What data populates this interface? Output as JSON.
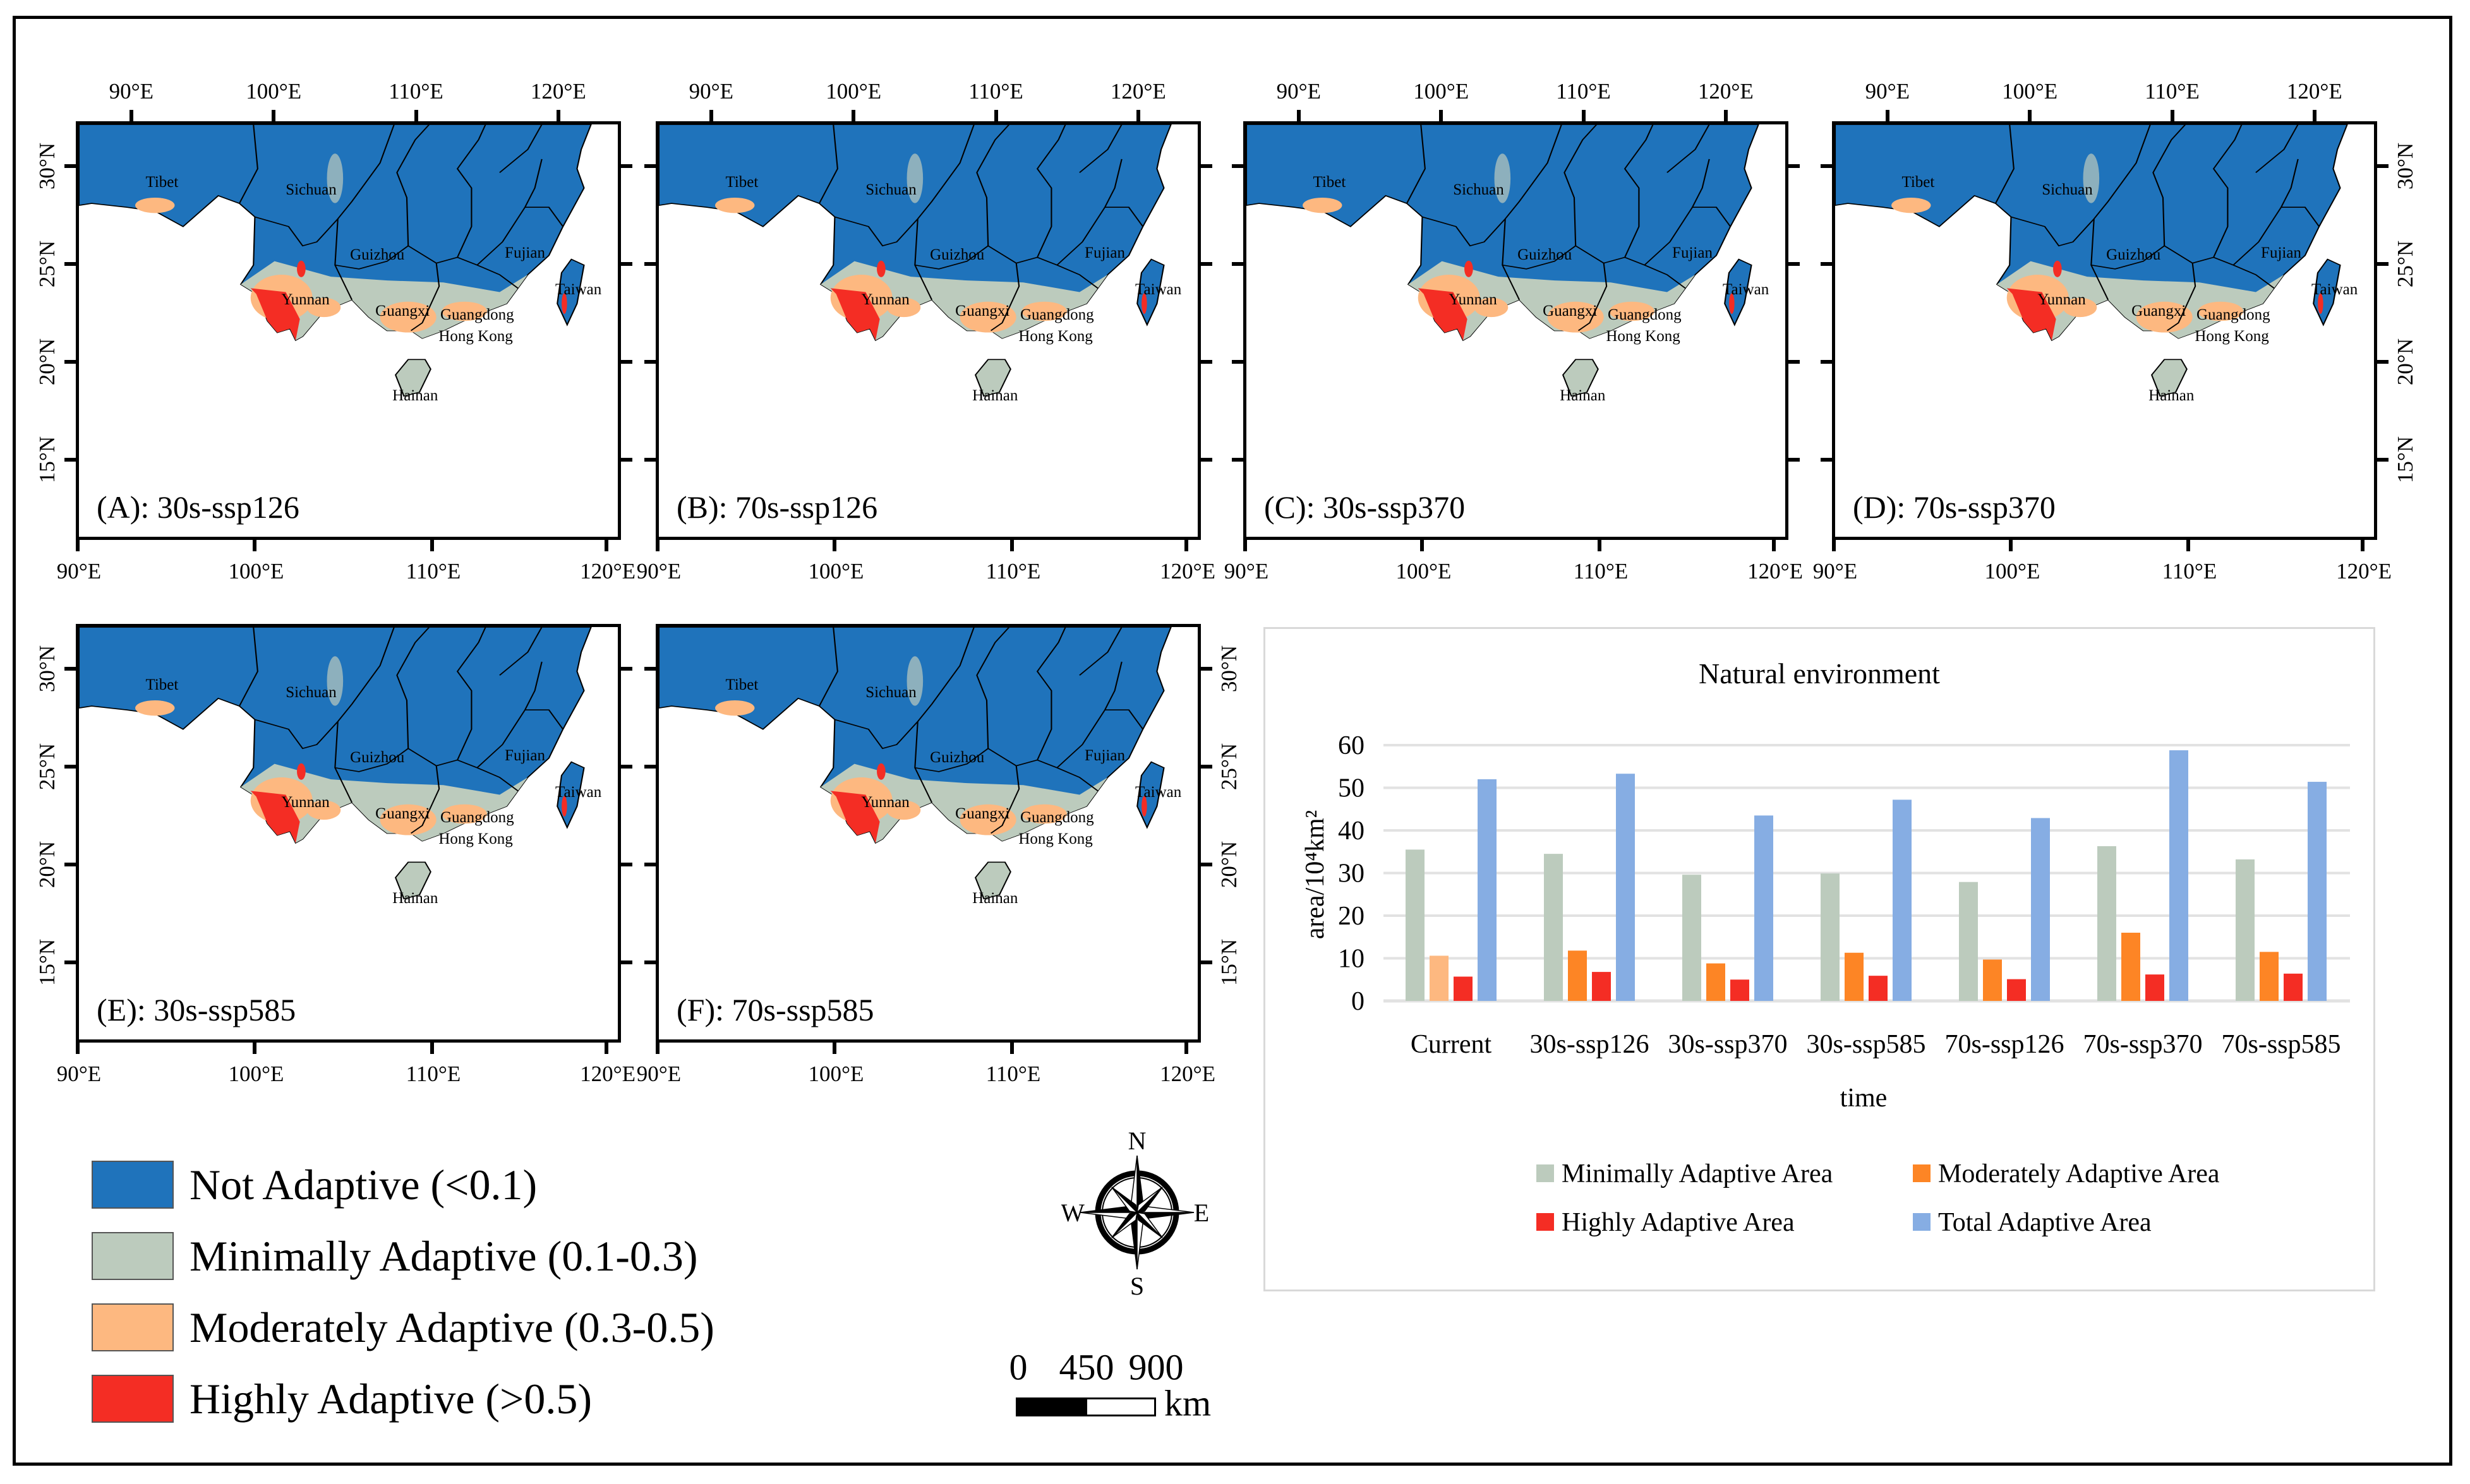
{
  "maps": [
    {
      "label": "(A): 30s-ssp126"
    },
    {
      "label": "(B): 70s-ssp126"
    },
    {
      "label": "(C): 30s-ssp370"
    },
    {
      "label": "(D): 70s-ssp370"
    },
    {
      "label": "(E): 30s-ssp585"
    },
    {
      "label": "(F): 70s-ssp585"
    }
  ],
  "lon_labels": [
    "90°E",
    "100°E",
    "110°E",
    "120°E"
  ],
  "lat_labels": [
    "30°N",
    "25°N",
    "20°N",
    "15°N"
  ],
  "province_labels": [
    "Tibet",
    "Sichuan",
    "Guizhou",
    "Yunnan",
    "Guangxi",
    "Guangdong",
    "Hong Kong",
    "Fujian",
    "Taiwan",
    "Hainan"
  ],
  "legend": [
    {
      "label": "Not Adaptive (<0.1)",
      "color": "#1f73bb"
    },
    {
      "label": "Minimally Adaptive (0.1-0.3)",
      "color": "#bccbbd"
    },
    {
      "label": "Moderately Adaptive (0.3-0.5)",
      "color": "#fdb880"
    },
    {
      "label": "Highly Adaptive (>0.5)",
      "color": "#f42d24"
    }
  ],
  "compass": {
    "n": "N",
    "e": "E",
    "s": "S",
    "w": "W"
  },
  "scale_bar": {
    "labels": [
      "0",
      "450",
      "900"
    ],
    "unit": "km"
  },
  "chart_data": {
    "type": "bar",
    "title": "Natural environment",
    "xlabel": "time",
    "ylabel": "area/10⁴km²",
    "ylim": [
      0,
      60
    ],
    "yticks": [
      0,
      10,
      20,
      30,
      40,
      50,
      60
    ],
    "grid": true,
    "legend_position": "bottom",
    "categories": [
      "Current",
      "30s-ssp126",
      "30s-ssp370",
      "30s-ssp585",
      "70s-ssp126",
      "70s-ssp370",
      "70s-ssp585"
    ],
    "series": [
      {
        "name": "Minimally Adaptive Area",
        "color": "#bccbbd",
        "values": [
          35.5,
          34.5,
          29.6,
          29.9,
          27.9,
          36.3,
          33.2
        ]
      },
      {
        "name": "Moderately Adaptive Area",
        "color": "#fd8525",
        "values": [
          10.6,
          11.8,
          8.8,
          11.3,
          9.7,
          16.0,
          11.5
        ]
      },
      {
        "name": "Highly Adaptive Area",
        "color": "#f42d24",
        "values": [
          5.7,
          6.8,
          5.0,
          5.9,
          5.1,
          6.2,
          6.4
        ]
      },
      {
        "name": "Total Adaptive Area",
        "color": "#86ade3",
        "values": [
          52.0,
          53.3,
          43.5,
          47.2,
          42.9,
          58.8,
          51.4
        ]
      }
    ],
    "first_bar_color_current_moderate": "#fdb880"
  }
}
